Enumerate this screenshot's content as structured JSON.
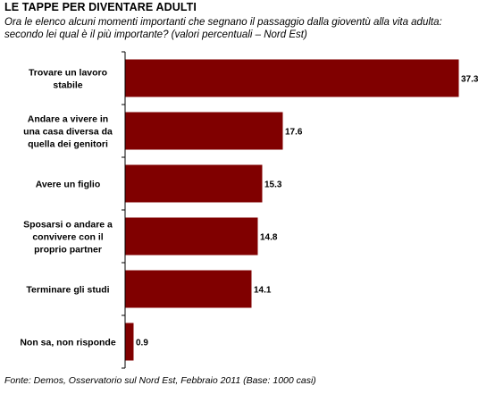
{
  "title": "LE TAPPE PER DIVENTARE ADULTI",
  "subtitle": "Ora le elenco alcuni momenti importanti che segnano il passaggio dalla gioventù alla vita adulta: secondo lei qual è il più importante? (valori percentuali – Nord Est)",
  "source": "Fonte: Demos, Osservatorio sul Nord Est, Febbraio 2011 (Base: 1000 casi)",
  "chart_data": {
    "type": "bar",
    "orientation": "horizontal",
    "categories": [
      [
        "Trovare un lavoro",
        "stabile"
      ],
      [
        "Andare a vivere in",
        "una casa diversa da",
        "quella dei genitori"
      ],
      [
        "Avere un figlio"
      ],
      [
        "Sposarsi o andare a",
        "convivere con il",
        "proprio partner"
      ],
      [
        "Terminare gli studi"
      ],
      [
        "Non sa, non risponde"
      ]
    ],
    "values": [
      37.3,
      17.6,
      15.3,
      14.8,
      14.1,
      0.9
    ],
    "value_labels": [
      "37.3",
      "17.6",
      "15.3",
      "14.8",
      "14.1",
      "0.9"
    ],
    "xlim": [
      0,
      40
    ],
    "grid": false,
    "bar_color": "#800000",
    "axis_color": "#000000"
  }
}
